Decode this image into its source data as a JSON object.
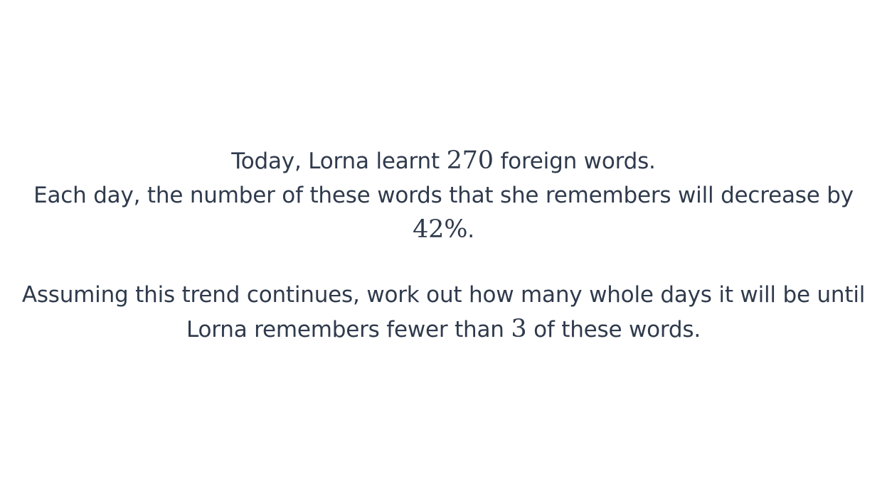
{
  "question": {
    "paragraph1": {
      "line1_before": "Today, Lorna learnt ",
      "initial_words": "270",
      "line1_after": " foreign words.",
      "line2_before": "Each day, the number of these words that she remembers will decrease by ",
      "decrease_percent": "42%",
      "line2_after": "."
    },
    "paragraph2": {
      "before": "Assuming this trend continues, work out how many whole days it will be until Lorna remembers fewer than ",
      "threshold": "3",
      "after": " of these words."
    }
  }
}
